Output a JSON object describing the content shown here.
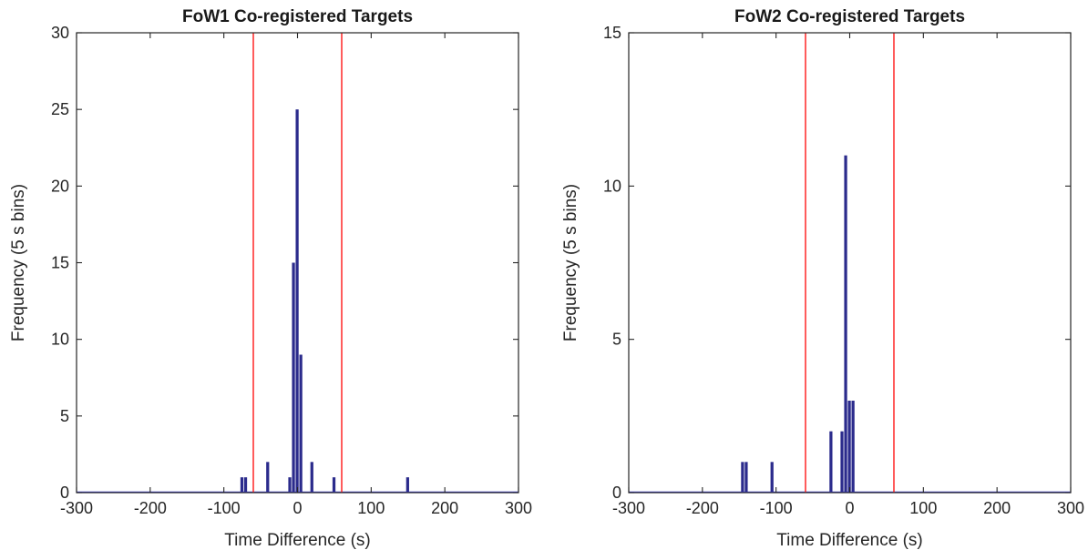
{
  "chart_data": [
    {
      "type": "bar",
      "title": "FoW1 Co-registered Targets",
      "xlabel": "Time Difference (s)",
      "ylabel": "Frequency (5 s bins)",
      "xlim": [
        -300,
        300
      ],
      "ylim": [
        0,
        30
      ],
      "xticks": [
        -300,
        -200,
        -100,
        0,
        100,
        200,
        300
      ],
      "yticks": [
        0,
        5,
        10,
        15,
        20,
        25,
        30
      ],
      "bin_width": 5,
      "bins": [
        {
          "x": -75,
          "y": 1
        },
        {
          "x": -70,
          "y": 1
        },
        {
          "x": -40,
          "y": 2
        },
        {
          "x": -10,
          "y": 1
        },
        {
          "x": -5,
          "y": 15
        },
        {
          "x": 0,
          "y": 25
        },
        {
          "x": 5,
          "y": 9
        },
        {
          "x": 20,
          "y": 2
        },
        {
          "x": 50,
          "y": 1
        },
        {
          "x": 150,
          "y": 1
        }
      ],
      "threshold_lines": [
        -60,
        60
      ],
      "colors": {
        "bar": "#2b2b8c",
        "threshold": "#ff3333",
        "baseline": "#3a3ac8",
        "axis": "#262626"
      },
      "grid": false
    },
    {
      "type": "bar",
      "title": "FoW2 Co-registered Targets",
      "xlabel": "Time Difference (s)",
      "ylabel": "Frequency (5 s bins)",
      "xlim": [
        -300,
        300
      ],
      "ylim": [
        0,
        15
      ],
      "xticks": [
        -300,
        -200,
        -100,
        0,
        100,
        200,
        300
      ],
      "yticks": [
        0,
        5,
        10,
        15
      ],
      "bin_width": 5,
      "bins": [
        {
          "x": -145,
          "y": 1
        },
        {
          "x": -140,
          "y": 1
        },
        {
          "x": -105,
          "y": 1
        },
        {
          "x": -25,
          "y": 2
        },
        {
          "x": -10,
          "y": 2
        },
        {
          "x": -5,
          "y": 11
        },
        {
          "x": 0,
          "y": 3
        },
        {
          "x": 5,
          "y": 3
        }
      ],
      "threshold_lines": [
        -60,
        60
      ],
      "colors": {
        "bar": "#2b2b8c",
        "threshold": "#ff3333",
        "baseline": "#3a3ac8",
        "axis": "#262626"
      },
      "grid": false
    }
  ]
}
